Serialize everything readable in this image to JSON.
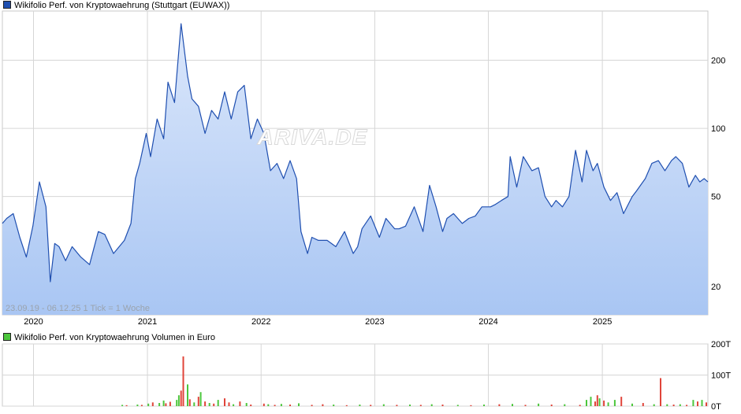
{
  "chart_data": [
    {
      "type": "area",
      "title": "Wikifolio Perf. von Kryptowaehrung (Stuttgart (EUWAX))",
      "series_color": "#1f4fb0",
      "fill_color_top": "#dbe7fb",
      "fill_color_bottom": "#a9c6f3",
      "y_scale": "log",
      "ylim": [
        15,
        330
      ],
      "y_ticks": [
        20,
        50,
        100,
        200
      ],
      "x_range": [
        "2019-09-23",
        "2025-12-06"
      ],
      "x_ticks": [
        "2020",
        "2021",
        "2022",
        "2023",
        "2024",
        "2025"
      ],
      "range_label": "23.09.19 - 06.12.25",
      "tick_label": "1 Tick = 1 Woche",
      "watermark": "ARIVA.DE",
      "grid": true,
      "x": [
        "2019-09-23",
        "2019-10-07",
        "2019-10-28",
        "2019-11-18",
        "2019-12-09",
        "2019-12-30",
        "2020-01-20",
        "2020-02-10",
        "2020-02-24",
        "2020-03-09",
        "2020-03-23",
        "2020-04-13",
        "2020-05-04",
        "2020-06-01",
        "2020-06-29",
        "2020-07-27",
        "2020-08-17",
        "2020-09-14",
        "2020-10-19",
        "2020-11-09",
        "2020-11-23",
        "2020-12-07",
        "2020-12-28",
        "2021-01-11",
        "2021-02-01",
        "2021-02-22",
        "2021-03-08",
        "2021-03-29",
        "2021-04-19",
        "2021-05-10",
        "2021-05-24",
        "2021-06-14",
        "2021-07-05",
        "2021-07-26",
        "2021-08-16",
        "2021-09-06",
        "2021-09-27",
        "2021-10-18",
        "2021-11-08",
        "2021-11-29",
        "2021-12-20",
        "2022-01-10",
        "2022-01-31",
        "2022-02-21",
        "2022-03-14",
        "2022-04-04",
        "2022-04-25",
        "2022-05-09",
        "2022-05-30",
        "2022-06-13",
        "2022-07-04",
        "2022-08-01",
        "2022-08-29",
        "2022-09-26",
        "2022-10-24",
        "2022-11-07",
        "2022-11-21",
        "2022-12-19",
        "2023-01-16",
        "2023-02-06",
        "2023-03-06",
        "2023-03-20",
        "2023-04-10",
        "2023-05-08",
        "2023-06-05",
        "2023-06-26",
        "2023-07-17",
        "2023-08-07",
        "2023-08-21",
        "2023-09-11",
        "2023-10-09",
        "2023-10-30",
        "2023-11-20",
        "2023-12-11",
        "2024-01-08",
        "2024-01-22",
        "2024-02-12",
        "2024-03-04",
        "2024-03-11",
        "2024-04-01",
        "2024-04-22",
        "2024-05-20",
        "2024-06-10",
        "2024-07-01",
        "2024-07-22",
        "2024-08-05",
        "2024-08-26",
        "2024-09-16",
        "2024-10-07",
        "2024-10-28",
        "2024-11-11",
        "2024-12-02",
        "2024-12-16",
        "2025-01-06",
        "2025-01-27",
        "2025-02-17",
        "2025-03-10",
        "2025-04-07",
        "2025-04-21",
        "2025-05-19",
        "2025-06-09",
        "2025-06-30",
        "2025-07-21",
        "2025-08-11",
        "2025-08-25",
        "2025-09-15",
        "2025-10-06",
        "2025-10-27",
        "2025-11-10",
        "2025-11-24",
        "2025-12-06"
      ],
      "values": [
        38,
        40,
        42,
        33,
        27,
        37,
        58,
        45,
        21,
        31,
        30,
        26,
        30,
        27,
        25,
        35,
        34,
        28,
        32,
        38,
        60,
        70,
        95,
        75,
        110,
        90,
        160,
        130,
        290,
        170,
        135,
        125,
        95,
        120,
        110,
        145,
        110,
        145,
        155,
        90,
        110,
        95,
        65,
        70,
        60,
        72,
        60,
        35,
        28,
        33,
        32,
        32,
        30,
        35,
        28,
        30,
        36,
        41,
        33,
        40,
        36,
        36,
        37,
        45,
        35,
        56,
        45,
        35,
        40,
        42,
        38,
        40,
        41,
        45,
        45,
        46,
        48,
        50,
        75,
        55,
        75,
        65,
        67,
        50,
        45,
        48,
        45,
        50,
        80,
        58,
        80,
        65,
        70,
        55,
        48,
        52,
        42,
        50,
        53,
        60,
        70,
        72,
        65,
        72,
        75,
        70,
        55,
        62,
        58,
        60,
        58
      ]
    },
    {
      "type": "bar",
      "title": "Wikifolio Perf. von Kryptowaehrung Volumen in Euro",
      "series_color_up": "#4cc63c",
      "series_color_down": "#e0443a",
      "ylim": [
        0,
        200
      ],
      "y_ticks": [
        "0T",
        "100T",
        "200T"
      ],
      "y_unit": "T Euro",
      "x_range": [
        "2019-09-23",
        "2025-12-06"
      ],
      "x": [
        "2020-10-12",
        "2020-10-26",
        "2020-11-30",
        "2020-12-14",
        "2021-01-04",
        "2021-01-18",
        "2021-02-08",
        "2021-02-22",
        "2021-03-01",
        "2021-03-15",
        "2021-04-05",
        "2021-04-12",
        "2021-04-19",
        "2021-04-26",
        "2021-05-10",
        "2021-05-17",
        "2021-05-31",
        "2021-06-14",
        "2021-06-21",
        "2021-07-05",
        "2021-07-19",
        "2021-08-02",
        "2021-08-16",
        "2021-09-06",
        "2021-09-20",
        "2021-10-04",
        "2021-10-25",
        "2021-11-15",
        "2021-11-29",
        "2022-01-10",
        "2022-01-24",
        "2022-02-14",
        "2022-03-07",
        "2022-04-04",
        "2022-05-02",
        "2022-06-13",
        "2022-07-18",
        "2022-08-22",
        "2022-10-03",
        "2022-11-14",
        "2022-12-19",
        "2023-01-30",
        "2023-03-13",
        "2023-04-24",
        "2023-05-29",
        "2023-07-03",
        "2023-08-07",
        "2023-09-25",
        "2023-11-06",
        "2023-12-18",
        "2024-02-05",
        "2024-03-18",
        "2024-04-29",
        "2024-06-10",
        "2024-07-22",
        "2024-09-02",
        "2024-10-21",
        "2024-11-11",
        "2024-11-25",
        "2024-12-09",
        "2024-12-16",
        "2024-12-23",
        "2025-01-06",
        "2025-01-20",
        "2025-02-10",
        "2025-03-03",
        "2025-04-07",
        "2025-05-12",
        "2025-06-16",
        "2025-07-07",
        "2025-07-28",
        "2025-08-18",
        "2025-09-08",
        "2025-09-29",
        "2025-10-20",
        "2025-11-03",
        "2025-11-17",
        "2025-12-01"
      ],
      "values": [
        4,
        3,
        5,
        4,
        8,
        12,
        10,
        18,
        9,
        14,
        20,
        35,
        50,
        160,
        70,
        22,
        12,
        30,
        45,
        15,
        10,
        8,
        20,
        25,
        12,
        6,
        15,
        10,
        5,
        8,
        6,
        4,
        7,
        5,
        9,
        4,
        6,
        5,
        3,
        5,
        4,
        6,
        4,
        5,
        4,
        6,
        5,
        4,
        3,
        5,
        6,
        7,
        4,
        8,
        5,
        6,
        4,
        20,
        30,
        15,
        35,
        25,
        18,
        12,
        20,
        30,
        8,
        10,
        6,
        90,
        6,
        5,
        6,
        4,
        20,
        15,
        20,
        12
      ],
      "up": [
        true,
        false,
        true,
        false,
        true,
        false,
        true,
        true,
        false,
        false,
        true,
        true,
        false,
        false,
        true,
        false,
        true,
        false,
        true,
        false,
        true,
        false,
        true,
        false,
        false,
        true,
        false,
        true,
        false,
        false,
        true,
        false,
        true,
        false,
        true,
        false,
        false,
        true,
        false,
        true,
        false,
        true,
        false,
        true,
        false,
        true,
        false,
        true,
        false,
        true,
        false,
        true,
        false,
        true,
        false,
        true,
        false,
        true,
        true,
        false,
        false,
        true,
        false,
        true,
        true,
        false,
        true,
        false,
        true,
        false,
        true,
        false,
        true,
        false,
        true,
        false,
        true,
        false
      ]
    }
  ]
}
